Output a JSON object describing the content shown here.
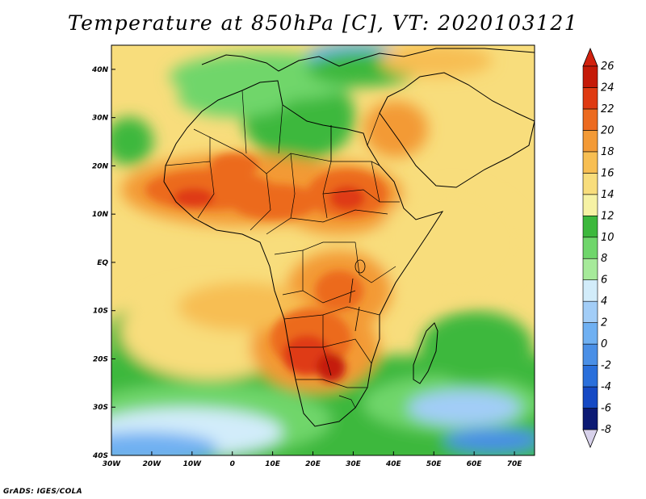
{
  "title": "Temperature at 850hPa [C], VT: 2020103121",
  "credit": "GrADS: IGES/COLA",
  "map": {
    "lon_range": [
      -30,
      75
    ],
    "lat_range": [
      -40,
      45
    ],
    "x_ticks": [
      {
        "lon": -30,
        "label": "30W"
      },
      {
        "lon": -20,
        "label": "20W"
      },
      {
        "lon": -10,
        "label": "10W"
      },
      {
        "lon": 0,
        "label": "0"
      },
      {
        "lon": 10,
        "label": "10E"
      },
      {
        "lon": 20,
        "label": "20E"
      },
      {
        "lon": 30,
        "label": "30E"
      },
      {
        "lon": 40,
        "label": "40E"
      },
      {
        "lon": 50,
        "label": "50E"
      },
      {
        "lon": 60,
        "label": "60E"
      },
      {
        "lon": 70,
        "label": "70E"
      }
    ],
    "y_ticks": [
      {
        "lat": 40,
        "label": "40N"
      },
      {
        "lat": 30,
        "label": "30N"
      },
      {
        "lat": 20,
        "label": "20N"
      },
      {
        "lat": 10,
        "label": "10N"
      },
      {
        "lat": 0,
        "label": "EQ"
      },
      {
        "lat": -10,
        "label": "10S"
      },
      {
        "lat": -20,
        "label": "20S"
      },
      {
        "lat": -30,
        "label": "30S"
      },
      {
        "lat": -40,
        "label": "40S"
      }
    ]
  },
  "colorbar": {
    "levels": [
      -8,
      -6,
      -4,
      -2,
      0,
      2,
      4,
      6,
      8,
      10,
      12,
      14,
      16,
      18,
      20,
      22,
      24,
      26
    ],
    "labels": [
      "-8",
      "-6",
      "-4",
      "-2",
      "0",
      "2",
      "4",
      "6",
      "8",
      "10",
      "12",
      "14",
      "16",
      "18",
      "20",
      "22",
      "24",
      "26"
    ],
    "colors": [
      "#0c1a74",
      "#1549c4",
      "#2a6fdb",
      "#4a8fe6",
      "#6fb0f2",
      "#a2cdf7",
      "#d2ecfa",
      "#a6ea9a",
      "#6fd66b",
      "#3cb83c",
      "#f6f2a4",
      "#f8dd7c",
      "#f7be52",
      "#f39a36",
      "#ec6a1f",
      "#df3a12",
      "#c51a08"
    ],
    "under_color": "#d7d1ea",
    "over_color": "#d1210e"
  }
}
